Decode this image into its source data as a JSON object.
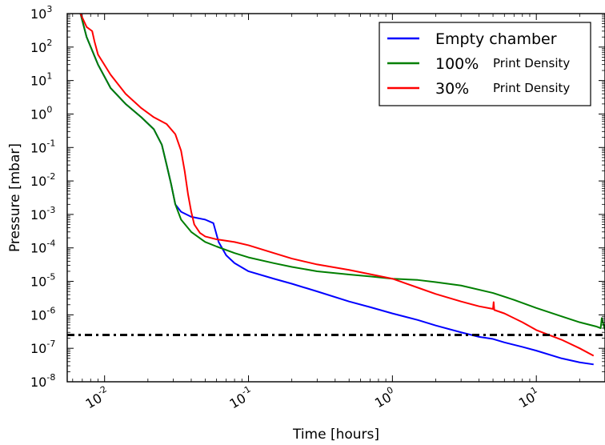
{
  "chart_data": {
    "type": "line",
    "xlabel": "Time [hours]",
    "ylabel": "Pressure [mbar]",
    "x_scale": "log",
    "y_scale": "log",
    "xlim": [
      0.0055,
      30
    ],
    "ylim": [
      1e-08,
      1000
    ],
    "x_ticks": [
      {
        "value": 0.01,
        "base": "10",
        "exp": "-2"
      },
      {
        "value": 0.1,
        "base": "10",
        "exp": "-1"
      },
      {
        "value": 1,
        "base": "10",
        "exp": "0"
      },
      {
        "value": 10,
        "base": "10",
        "exp": "1"
      }
    ],
    "y_ticks": [
      {
        "value": 1000,
        "base": "10",
        "exp": "3"
      },
      {
        "value": 100,
        "base": "10",
        "exp": "2"
      },
      {
        "value": 10,
        "base": "10",
        "exp": "1"
      },
      {
        "value": 1,
        "base": "10",
        "exp": "0"
      },
      {
        "value": 0.1,
        "base": "10",
        "exp": "-1"
      },
      {
        "value": 0.01,
        "base": "10",
        "exp": "-2"
      },
      {
        "value": 0.001,
        "base": "10",
        "exp": "-3"
      },
      {
        "value": 0.0001,
        "base": "10",
        "exp": "-4"
      },
      {
        "value": 1e-05,
        "base": "10",
        "exp": "-5"
      },
      {
        "value": 1e-06,
        "base": "10",
        "exp": "-6"
      },
      {
        "value": 1e-07,
        "base": "10",
        "exp": "-7"
      },
      {
        "value": 1e-08,
        "base": "10",
        "exp": "-8"
      }
    ],
    "grid": false,
    "legend_position": "top-right",
    "reference_line": {
      "y": 2.5e-07,
      "style": "dash-dot",
      "color": "#000000"
    },
    "series": [
      {
        "name": "Empty chamber",
        "legend_main": "Empty chamber",
        "legend_sub": "",
        "color": "#0000ff",
        "x": [
          0.0068,
          0.0075,
          0.009,
          0.011,
          0.014,
          0.018,
          0.022,
          0.025,
          0.027,
          0.029,
          0.031,
          0.034,
          0.04,
          0.05,
          0.057,
          0.062,
          0.07,
          0.08,
          0.1,
          0.15,
          0.2,
          0.3,
          0.5,
          0.7,
          1,
          1.5,
          2,
          3,
          4,
          5,
          6,
          8,
          10,
          15,
          20,
          25
        ],
        "y": [
          1000,
          200,
          30,
          6,
          2,
          0.8,
          0.35,
          0.12,
          0.03,
          0.008,
          0.002,
          0.0012,
          0.00085,
          0.0007,
          0.00055,
          0.00015,
          6e-05,
          3.5e-05,
          2e-05,
          1.2e-05,
          8.5e-06,
          5e-06,
          2.5e-06,
          1.7e-06,
          1.1e-06,
          7e-07,
          4.8e-07,
          3e-07,
          2.2e-07,
          1.9e-07,
          1.5e-07,
          1.1e-07,
          8.5e-08,
          5e-08,
          3.8e-08,
          3.3e-08
        ]
      },
      {
        "name": "100% Print Density",
        "legend_main": "100%",
        "legend_sub": "Print Density",
        "color": "#007f00",
        "x": [
          0.0068,
          0.0075,
          0.009,
          0.011,
          0.014,
          0.018,
          0.022,
          0.025,
          0.027,
          0.029,
          0.031,
          0.034,
          0.04,
          0.05,
          0.06,
          0.08,
          0.1,
          0.15,
          0.2,
          0.3,
          0.5,
          0.7,
          1,
          1.5,
          2,
          3,
          5,
          7,
          10,
          15,
          20,
          26,
          28,
          28.5,
          30
        ],
        "y": [
          1000,
          200,
          30,
          6,
          2,
          0.8,
          0.35,
          0.12,
          0.03,
          0.008,
          0.002,
          0.0007,
          0.0003,
          0.00015,
          0.00011,
          7e-05,
          5.2e-05,
          3.5e-05,
          2.7e-05,
          2e-05,
          1.6e-05,
          1.4e-05,
          1.2e-05,
          1.1e-05,
          9.5e-06,
          7.5e-06,
          4.5e-06,
          2.8e-06,
          1.6e-06,
          9e-07,
          6e-07,
          4.5e-07,
          4e-07,
          8e-07,
          3.5e-07
        ]
      },
      {
        "name": "30% Print Density",
        "legend_main": "30%",
        "legend_sub": "Print Density",
        "color": "#ff0000",
        "x": [
          0.0068,
          0.0075,
          0.0082,
          0.0085,
          0.009,
          0.011,
          0.014,
          0.018,
          0.022,
          0.027,
          0.031,
          0.034,
          0.036,
          0.038,
          0.04,
          0.042,
          0.046,
          0.05,
          0.06,
          0.08,
          0.1,
          0.15,
          0.2,
          0.3,
          0.5,
          1,
          1.5,
          2,
          3,
          4,
          5,
          5.05,
          5.1,
          6,
          8,
          10,
          15,
          20,
          25
        ],
        "y": [
          1000,
          400,
          300,
          150,
          60,
          15,
          4,
          1.5,
          0.8,
          0.5,
          0.25,
          0.08,
          0.02,
          0.004,
          0.0012,
          0.0005,
          0.00028,
          0.00022,
          0.00018,
          0.00015,
          0.00012,
          7e-05,
          4.8e-05,
          3.2e-05,
          2.2e-05,
          1.2e-05,
          6.5e-06,
          4.2e-06,
          2.5e-06,
          1.8e-06,
          1.5e-06,
          2.4e-06,
          1.4e-06,
          1.1e-06,
          6e-07,
          3.5e-07,
          1.8e-07,
          1e-07,
          6e-08
        ]
      }
    ]
  }
}
